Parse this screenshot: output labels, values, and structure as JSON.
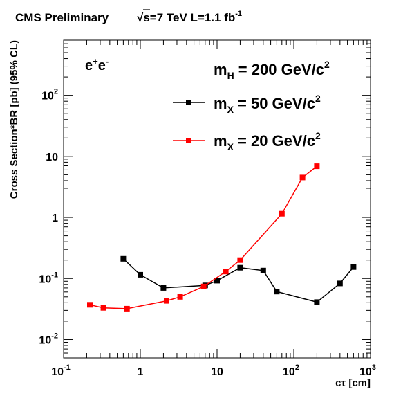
{
  "chart_data": {
    "type": "line",
    "title": {
      "experiment": "CMS Preliminary",
      "sqrt": "√",
      "energy": "s=7 TeV L=1.1 fb",
      "energy_exp": "-1"
    },
    "xlabel": "cτ [cm]",
    "ylabel": "Cross Section*BR [pb] (95% CL)",
    "x_scale": "log",
    "y_scale": "log",
    "xlim": [
      0.1,
      1000
    ],
    "ylim": [
      0.005,
      800
    ],
    "grid": false,
    "x_ticks": [
      {
        "value": 0.1,
        "base": "10",
        "exp": "-1"
      },
      {
        "value": 1,
        "base": "1",
        "exp": ""
      },
      {
        "value": 10,
        "base": "10",
        "exp": ""
      },
      {
        "value": 100,
        "base": "10",
        "exp": "2"
      },
      {
        "value": 1000,
        "base": "10",
        "exp": "3"
      }
    ],
    "y_ticks": [
      {
        "value": 0.01,
        "base": "10",
        "exp": "-2"
      },
      {
        "value": 0.1,
        "base": "10",
        "exp": "-1"
      },
      {
        "value": 1,
        "base": "1",
        "exp": ""
      },
      {
        "value": 10,
        "base": "10",
        "exp": ""
      },
      {
        "value": 100,
        "base": "10",
        "exp": "2"
      }
    ],
    "channel_label": {
      "base": "e",
      "sup1": "+",
      "mid": "e",
      "sup2": "-"
    },
    "higgs_label": {
      "m": "m",
      "sub": "H",
      "text": " = 200 GeV/c",
      "sup": "2"
    },
    "series": [
      {
        "name": {
          "m": "m",
          "sub": "X",
          "text": " = 50 GeV/c",
          "sup": "2"
        },
        "color": "#000000",
        "x": [
          0.6,
          1.0,
          2.0,
          7.0,
          10.0,
          20.0,
          40.0,
          60.0,
          200.0,
          400.0,
          600.0
        ],
        "y": [
          0.21,
          0.115,
          0.07,
          0.077,
          0.092,
          0.15,
          0.135,
          0.061,
          0.041,
          0.083,
          0.154
        ]
      },
      {
        "name": {
          "m": "m",
          "sub": "X",
          "text": " = 20 GeV/c",
          "sup": "2"
        },
        "color": "#ff0000",
        "x": [
          0.22,
          0.33,
          0.67,
          2.2,
          3.3,
          6.7,
          13.0,
          20.0,
          70.0,
          130.0,
          200.0
        ],
        "y": [
          0.037,
          0.033,
          0.032,
          0.043,
          0.05,
          0.074,
          0.13,
          0.2,
          1.15,
          4.5,
          6.9
        ]
      }
    ]
  }
}
